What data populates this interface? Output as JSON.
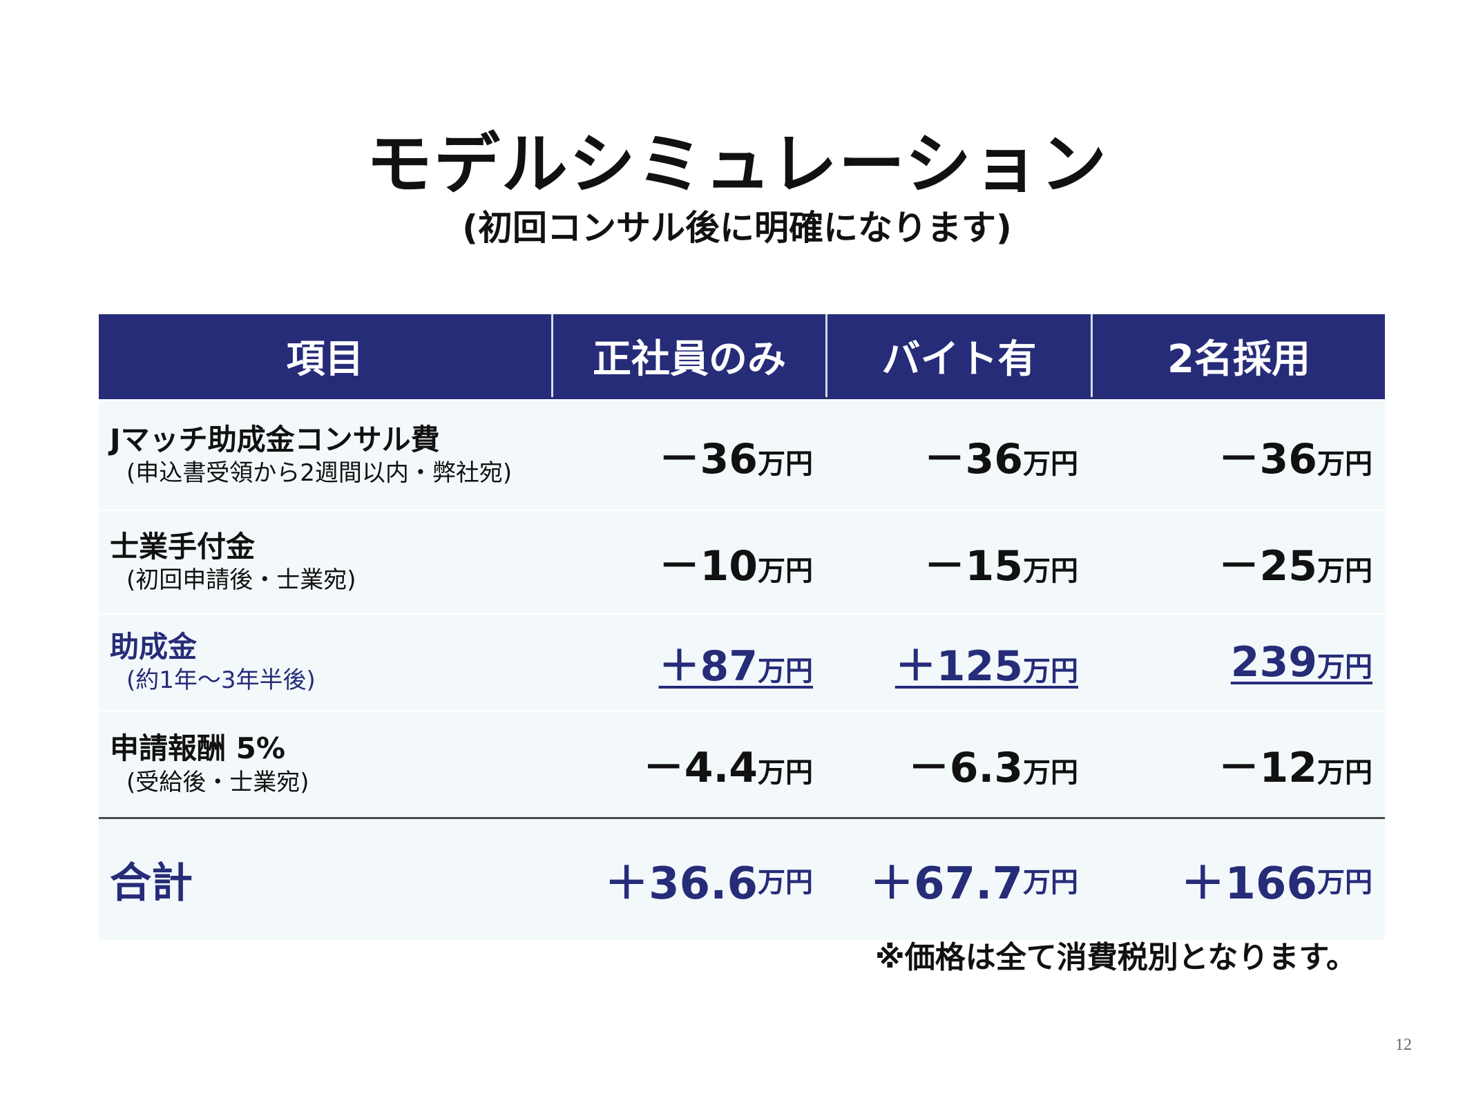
{
  "title": "モデルシミュレーション",
  "subtitle": "(初回コンサル後に明確になります)",
  "table": {
    "headers": [
      "項目",
      "正社員のみ",
      "バイト有",
      "2名採用"
    ],
    "rows": [
      {
        "label": "Jマッチ助成金コンサル費",
        "sub": "(申込書受領から2週間以内・弊社宛)",
        "values": [
          {
            "num": "－36",
            "unit": "万円"
          },
          {
            "num": "－36",
            "unit": "万円"
          },
          {
            "num": "－36",
            "unit": "万円"
          }
        ]
      },
      {
        "label": "士業手付金",
        "sub": "(初回申請後・士業宛)",
        "values": [
          {
            "num": "－10",
            "unit": "万円"
          },
          {
            "num": "－15",
            "unit": "万円"
          },
          {
            "num": "－25",
            "unit": "万円"
          }
        ]
      },
      {
        "label": "助成金",
        "sub": "(約1年～3年半後)",
        "values": [
          {
            "num": "＋87",
            "unit": "万円"
          },
          {
            "num": "＋125",
            "unit": "万円"
          },
          {
            "num": "239",
            "unit": "万円"
          }
        ]
      },
      {
        "label": "申請報酬 5%",
        "sub": "(受給後・士業宛)",
        "values": [
          {
            "num": "－4.4",
            "unit": "万円"
          },
          {
            "num": "－6.3",
            "unit": "万円"
          },
          {
            "num": "－12",
            "unit": "万円"
          }
        ]
      }
    ],
    "total": {
      "label": "合計",
      "values": [
        {
          "num": "＋36.6",
          "unit": "万円"
        },
        {
          "num": "＋67.7",
          "unit": "万円"
        },
        {
          "num": "＋166",
          "unit": "万円"
        }
      ]
    }
  },
  "note": "※価格は全て消費税別となります。",
  "page_number": "12",
  "colors": {
    "header_bg": "#262c78",
    "row_bg": "#f3f9fb",
    "accent_blue": "#262c78"
  }
}
